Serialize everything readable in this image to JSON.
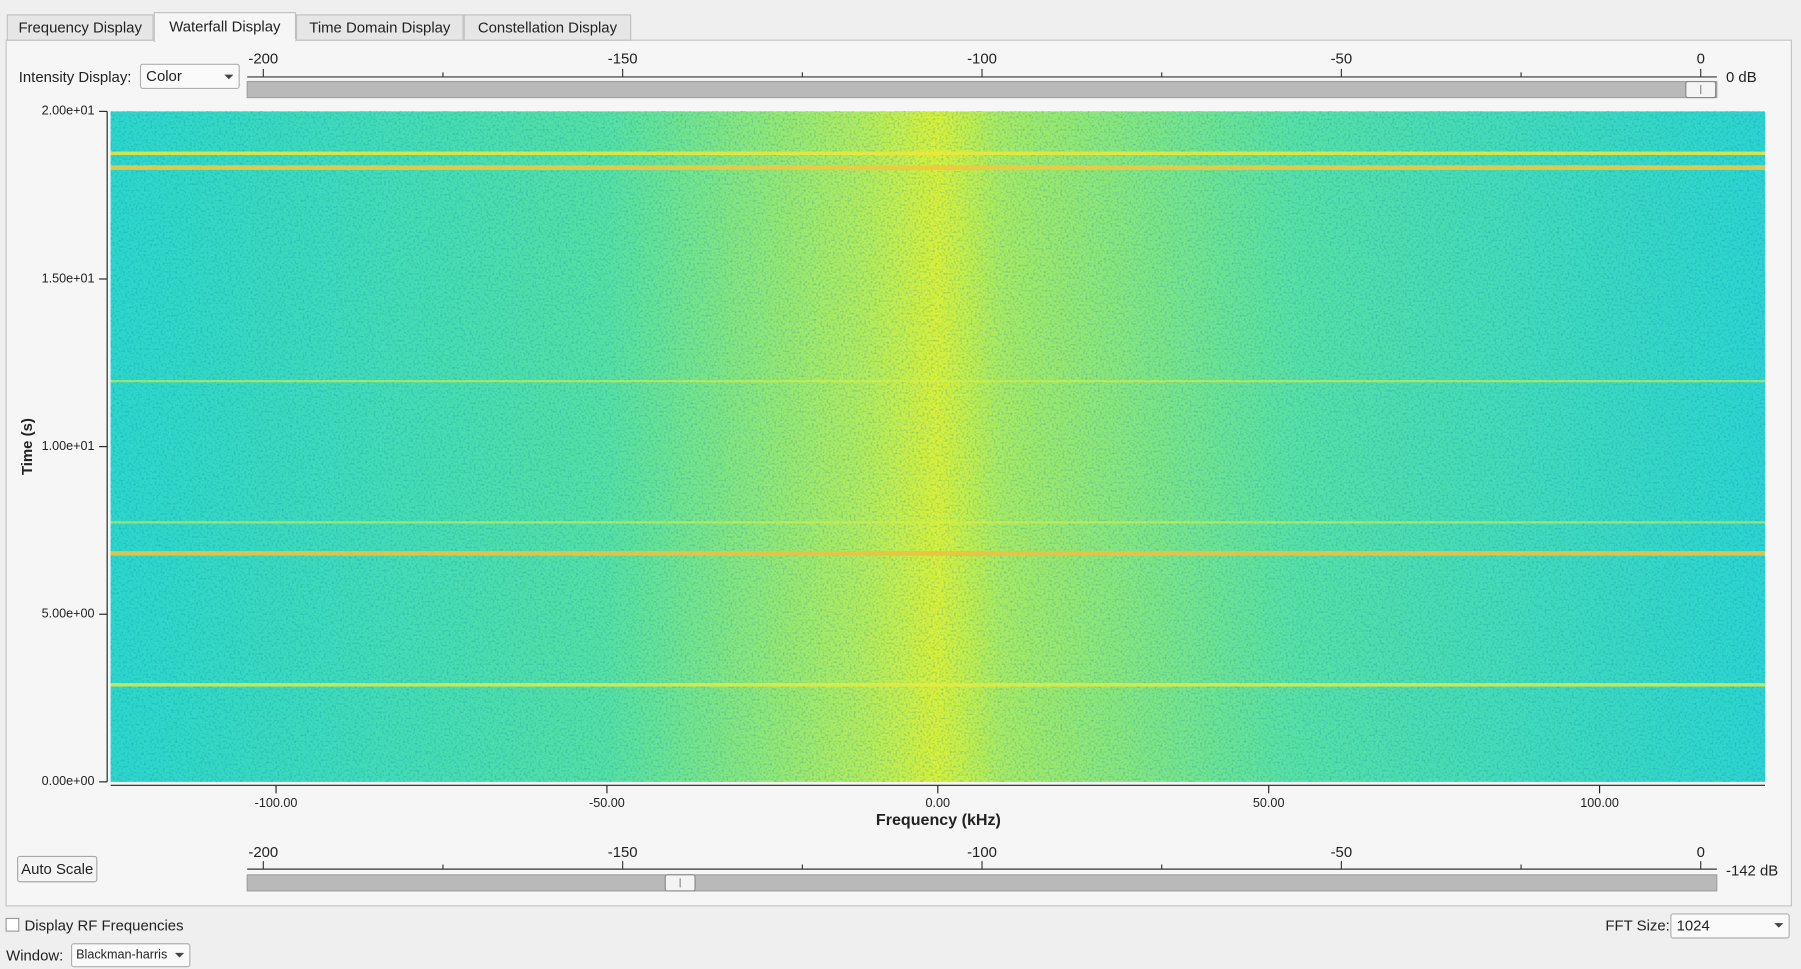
{
  "tabs": [
    "Frequency Display",
    "Waterfall Display",
    "Time Domain Display",
    "Constellation Display"
  ],
  "selected_tab": "Waterfall Display",
  "intensity": {
    "label": "Intensity Display:",
    "value": "Color"
  },
  "upper_slider": {
    "range": [
      -200,
      0
    ],
    "ticks": [
      -200,
      -150,
      -100,
      -50,
      0
    ],
    "minor_ticks": [
      -175,
      -125,
      -75,
      -25
    ],
    "value": 0,
    "value_label": "0 dB"
  },
  "lower_slider": {
    "range": [
      -200,
      0
    ],
    "ticks": [
      -200,
      -150,
      -100,
      -50,
      0
    ],
    "minor_ticks": [
      -175,
      -125,
      -75,
      -25
    ],
    "value": -142,
    "value_label": "-142 dB"
  },
  "chart_data": {
    "type": "waterfall",
    "xlabel": "Frequency (kHz)",
    "ylabel": "Time (s)",
    "xlim": [
      -125,
      125
    ],
    "ylim": [
      0,
      20
    ],
    "xticks": [
      {
        "value": -100,
        "label": "-100.00"
      },
      {
        "value": -50,
        "label": "-50.00"
      },
      {
        "value": 0,
        "label": "0.00"
      },
      {
        "value": 50,
        "label": "50.00"
      },
      {
        "value": 100,
        "label": "100.00"
      }
    ],
    "yticks": [
      {
        "value": 0,
        "label": "0.00e+00"
      },
      {
        "value": 5,
        "label": "5.00e+00"
      },
      {
        "value": 10,
        "label": "1.00e+01"
      },
      {
        "value": 15,
        "label": "1.50e+01"
      },
      {
        "value": 20,
        "label": "2.00e+01"
      }
    ]
  },
  "auto_scale_button": "Auto Scale",
  "rf_checkbox": {
    "label": "Display RF Frequencies",
    "checked": false
  },
  "fft_size": {
    "label": "FFT Size:",
    "value": "1024"
  },
  "window": {
    "label": "Window:",
    "value": "Blackman-harris"
  }
}
